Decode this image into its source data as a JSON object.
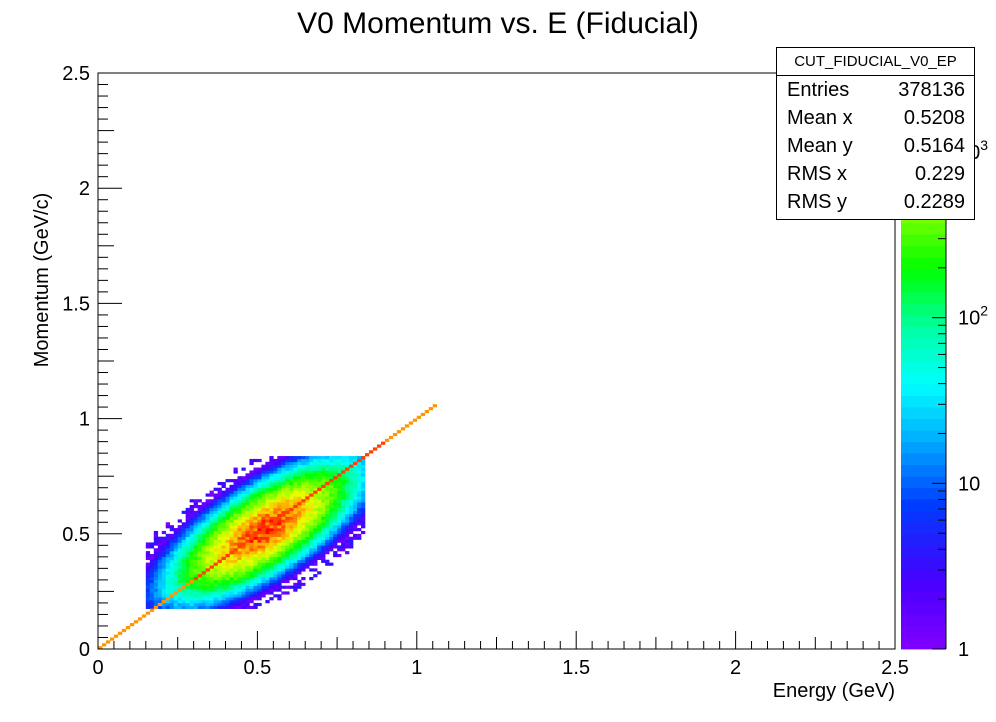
{
  "chart_data": {
    "type": "heatmap",
    "title": "V0 Momentum vs. E (Fiducial)",
    "xlabel": "Energy (GeV)",
    "ylabel": "Momentum (GeV/c)",
    "xlim": [
      0,
      2.5
    ],
    "ylim": [
      0,
      2.5
    ],
    "x_ticks": [
      "0",
      "0.5",
      "1",
      "1.5",
      "2",
      "2.5"
    ],
    "y_ticks": [
      "0",
      "0.5",
      "1",
      "1.5",
      "2",
      "2.5"
    ],
    "z_scale": "log",
    "z_ticks": [
      {
        "value": 1,
        "label": "1"
      },
      {
        "value": 10,
        "label": "10"
      },
      {
        "value": 100,
        "label": "10",
        "sup": "2"
      },
      {
        "value": 1000,
        "label": "10",
        "sup": "3"
      }
    ],
    "zlim": [
      1,
      3000
    ],
    "grid": false,
    "blob": {
      "center_x": 0.52,
      "center_y": 0.516,
      "rms_along_diagonal": 0.14,
      "rms_across_diagonal": 0.055,
      "peak_count": 2500,
      "x_range": [
        0.18,
        0.84
      ],
      "y_range": [
        0.17,
        0.84
      ]
    },
    "diagonal_line": {
      "x_start": 0,
      "x_end": 1.06,
      "slope": 1,
      "count": 700
    }
  },
  "stats_box": {
    "title": "CUT_FIDUCIAL_V0_EP",
    "rows": [
      {
        "label": "Entries",
        "value": "378136"
      },
      {
        "label": "Mean x",
        "value": "0.5208"
      },
      {
        "label": "Mean y",
        "value": "0.5164"
      },
      {
        "label": "RMS x",
        "value": "0.229"
      },
      {
        "label": "RMS y",
        "value": "0.2289"
      }
    ]
  }
}
